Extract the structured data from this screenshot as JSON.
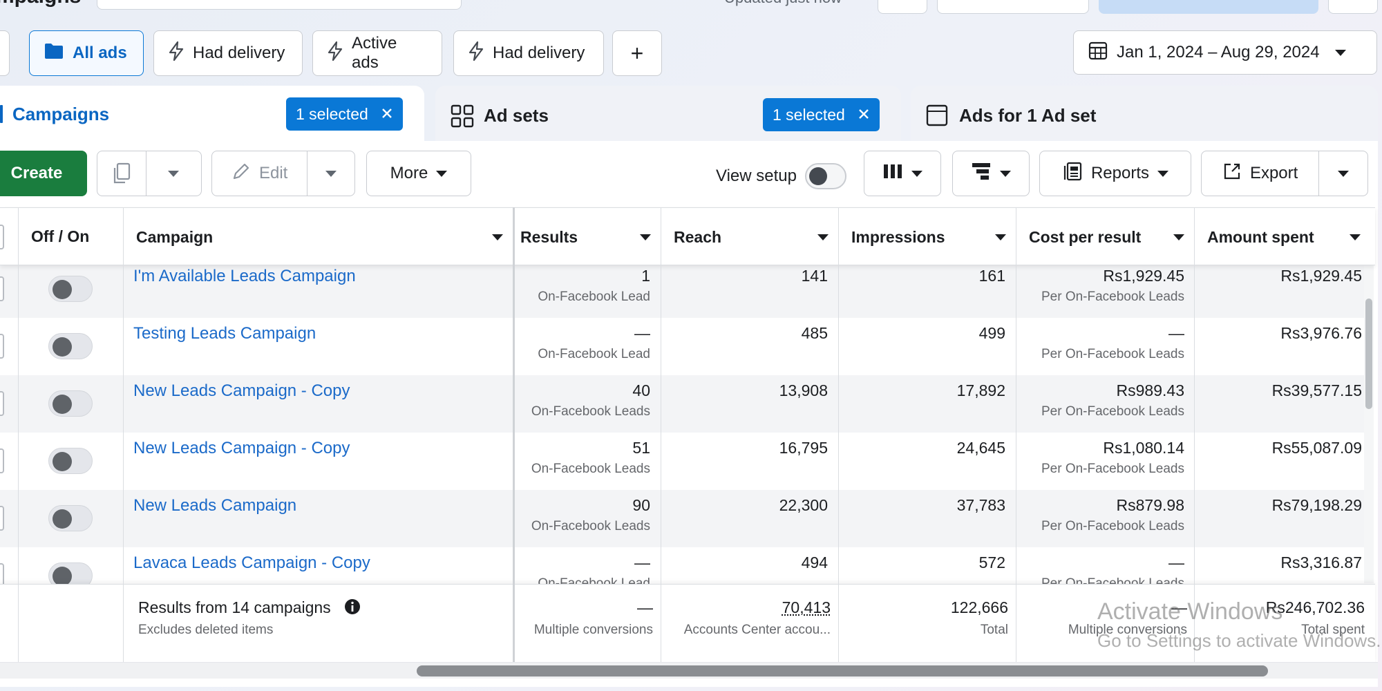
{
  "top": {
    "title": "mpaigns",
    "updated": "Updated just now"
  },
  "filters": {
    "chips": [
      {
        "label": "All ads",
        "icon": "folder-icon",
        "active": true
      },
      {
        "label": "Had delivery",
        "icon": "lightning-icon"
      },
      {
        "label": "Active ads",
        "icon": "lightning-icon"
      },
      {
        "label": "Had delivery",
        "icon": "lightning-icon"
      }
    ],
    "add_label": "+",
    "date_range": "Jan 1, 2024 – Aug 29, 2024"
  },
  "tabs": {
    "campaigns": {
      "label": "Campaigns",
      "selected": "1 selected"
    },
    "adsets": {
      "label": "Ad sets",
      "selected": "1 selected"
    },
    "ads": {
      "label": "Ads for 1 Ad set"
    }
  },
  "toolbar": {
    "create": "Create",
    "edit": "Edit",
    "more": "More",
    "view_setup": "View setup",
    "reports": "Reports",
    "export": "Export"
  },
  "table": {
    "headers": {
      "off_on": "Off / On",
      "campaign": "Campaign",
      "results": "Results",
      "reach": "Reach",
      "impressions": "Impressions",
      "cost": "Cost per result",
      "spent": "Amount spent"
    },
    "rows": [
      {
        "name": "I'm Available Leads Campaign",
        "results": "1",
        "results_sub": "On-Facebook Lead",
        "reach": "141",
        "impressions": "161",
        "cost": "Rs1,929.45",
        "cost_sub": "Per On-Facebook Leads",
        "spent": "Rs1,929.45"
      },
      {
        "name": "Testing Leads Campaign",
        "results": "—",
        "results_sub": "On-Facebook Lead",
        "reach": "485",
        "impressions": "499",
        "cost": "—",
        "cost_sub": "Per On-Facebook Leads",
        "spent": "Rs3,976.76"
      },
      {
        "name": "New Leads Campaign - Copy",
        "results": "40",
        "results_sub": "On-Facebook Leads",
        "reach": "13,908",
        "impressions": "17,892",
        "cost": "Rs989.43",
        "cost_sub": "Per On-Facebook Leads",
        "spent": "Rs39,577.15"
      },
      {
        "name": "New Leads Campaign - Copy",
        "results": "51",
        "results_sub": "On-Facebook Leads",
        "reach": "16,795",
        "impressions": "24,645",
        "cost": "Rs1,080.14",
        "cost_sub": "Per On-Facebook Leads",
        "spent": "Rs55,087.09"
      },
      {
        "name": "New Leads Campaign",
        "results": "90",
        "results_sub": "On-Facebook Leads",
        "reach": "22,300",
        "impressions": "37,783",
        "cost": "Rs879.98",
        "cost_sub": "Per On-Facebook Leads",
        "spent": "Rs79,198.29"
      },
      {
        "name": "Lavaca Leads Campaign - Copy",
        "results": "—",
        "results_sub": "On-Facebook Lead",
        "reach": "494",
        "impressions": "572",
        "cost": "—",
        "cost_sub": "Per On-Facebook Leads",
        "spent": "Rs3,316.87"
      }
    ],
    "footer": {
      "label": "Results from 14 campaigns",
      "sub": "Excludes deleted items",
      "results": "—",
      "results_sub": "Multiple conversions",
      "reach": "70,413",
      "reach_sub": "Accounts Center accou...",
      "impressions": "122,666",
      "impressions_sub": "Total",
      "cost": "—",
      "cost_sub": "Multiple conversions",
      "spent": "Rs246,702.36",
      "spent_sub": "Total spent"
    }
  },
  "watermark": {
    "line1": "Activate Windows",
    "line2": "Go to Settings to activate Windows."
  },
  "colors": {
    "accent": "#0a78d6",
    "link": "#1b6ac9",
    "create": "#1a7d3e"
  }
}
